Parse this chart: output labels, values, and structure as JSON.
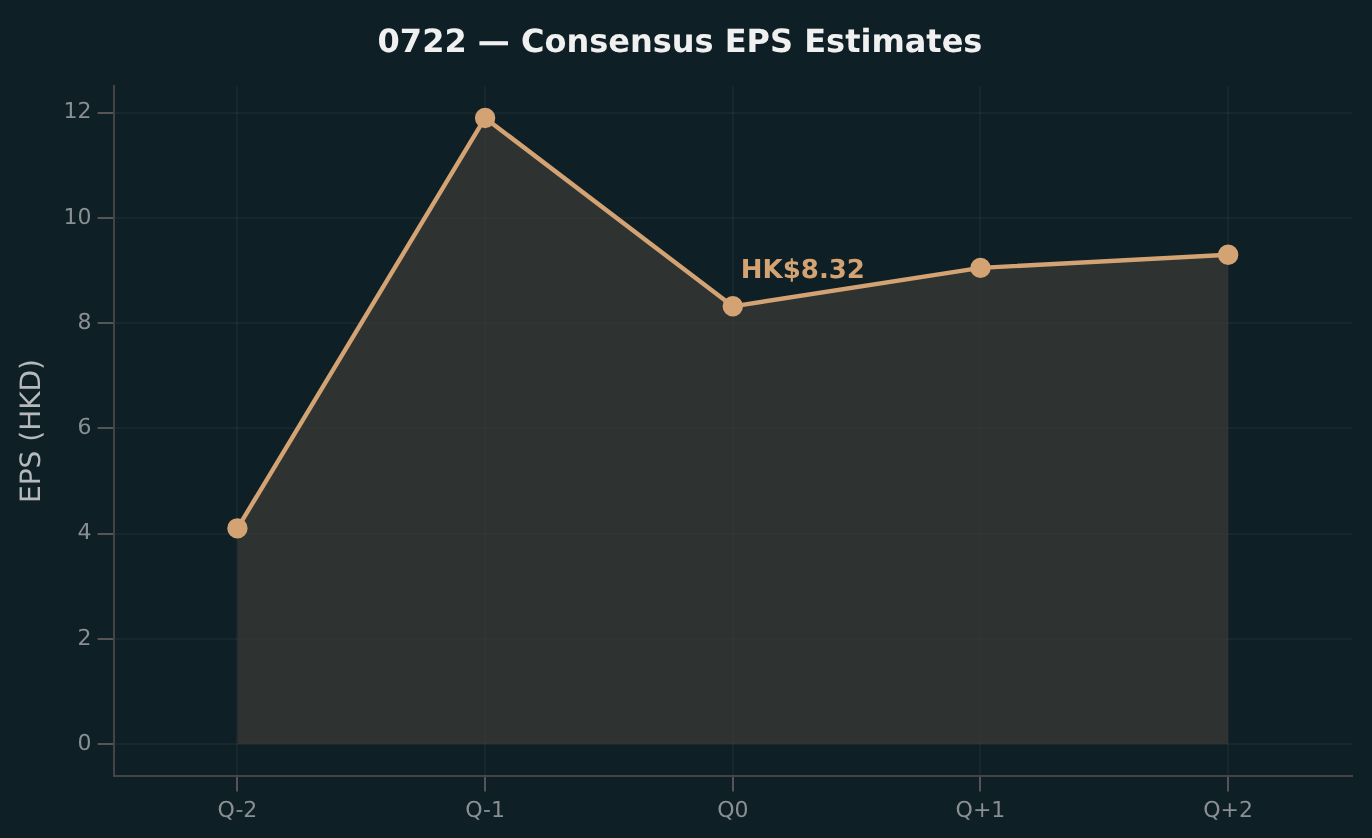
{
  "chart_data": {
    "type": "area",
    "title": "0722 — Consensus EPS Estimates",
    "ylabel": "EPS (HKD)",
    "categories": [
      "Q-2",
      "Q-1",
      "Q0",
      "Q+1",
      "Q+2"
    ],
    "series": [
      {
        "color": "#d4a373",
        "values": [
          4.1,
          11.9,
          8.32,
          9.05,
          9.3
        ]
      }
    ],
    "ylim": [
      -0.6,
      12.5
    ],
    "yticks": [
      0,
      2,
      4,
      6,
      8,
      10,
      12
    ],
    "grid": true,
    "marker": "circle",
    "legend": false,
    "annotations": [
      {
        "text": "HK$8.32",
        "x": "Q0",
        "y": 8.32
      }
    ]
  }
}
